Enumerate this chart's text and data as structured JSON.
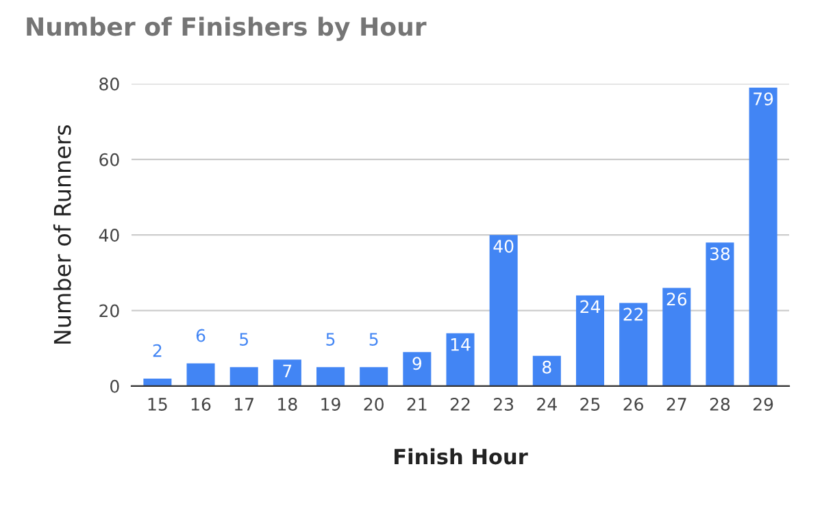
{
  "chart_data": {
    "type": "bar",
    "title": "Number of Finishers by Hour",
    "xlabel": "Finish Hour",
    "ylabel": "Number of Runners",
    "categories": [
      "15",
      "16",
      "17",
      "18",
      "19",
      "20",
      "21",
      "22",
      "23",
      "24",
      "25",
      "26",
      "27",
      "28",
      "29"
    ],
    "values": [
      2,
      6,
      5,
      7,
      5,
      5,
      9,
      14,
      40,
      8,
      24,
      22,
      26,
      38,
      79
    ],
    "color": "#4285f4",
    "ylim": [
      0,
      80
    ],
    "yticks": [
      0,
      20,
      40,
      60,
      80
    ],
    "grid": "y",
    "data_labels": true,
    "legend": false
  }
}
